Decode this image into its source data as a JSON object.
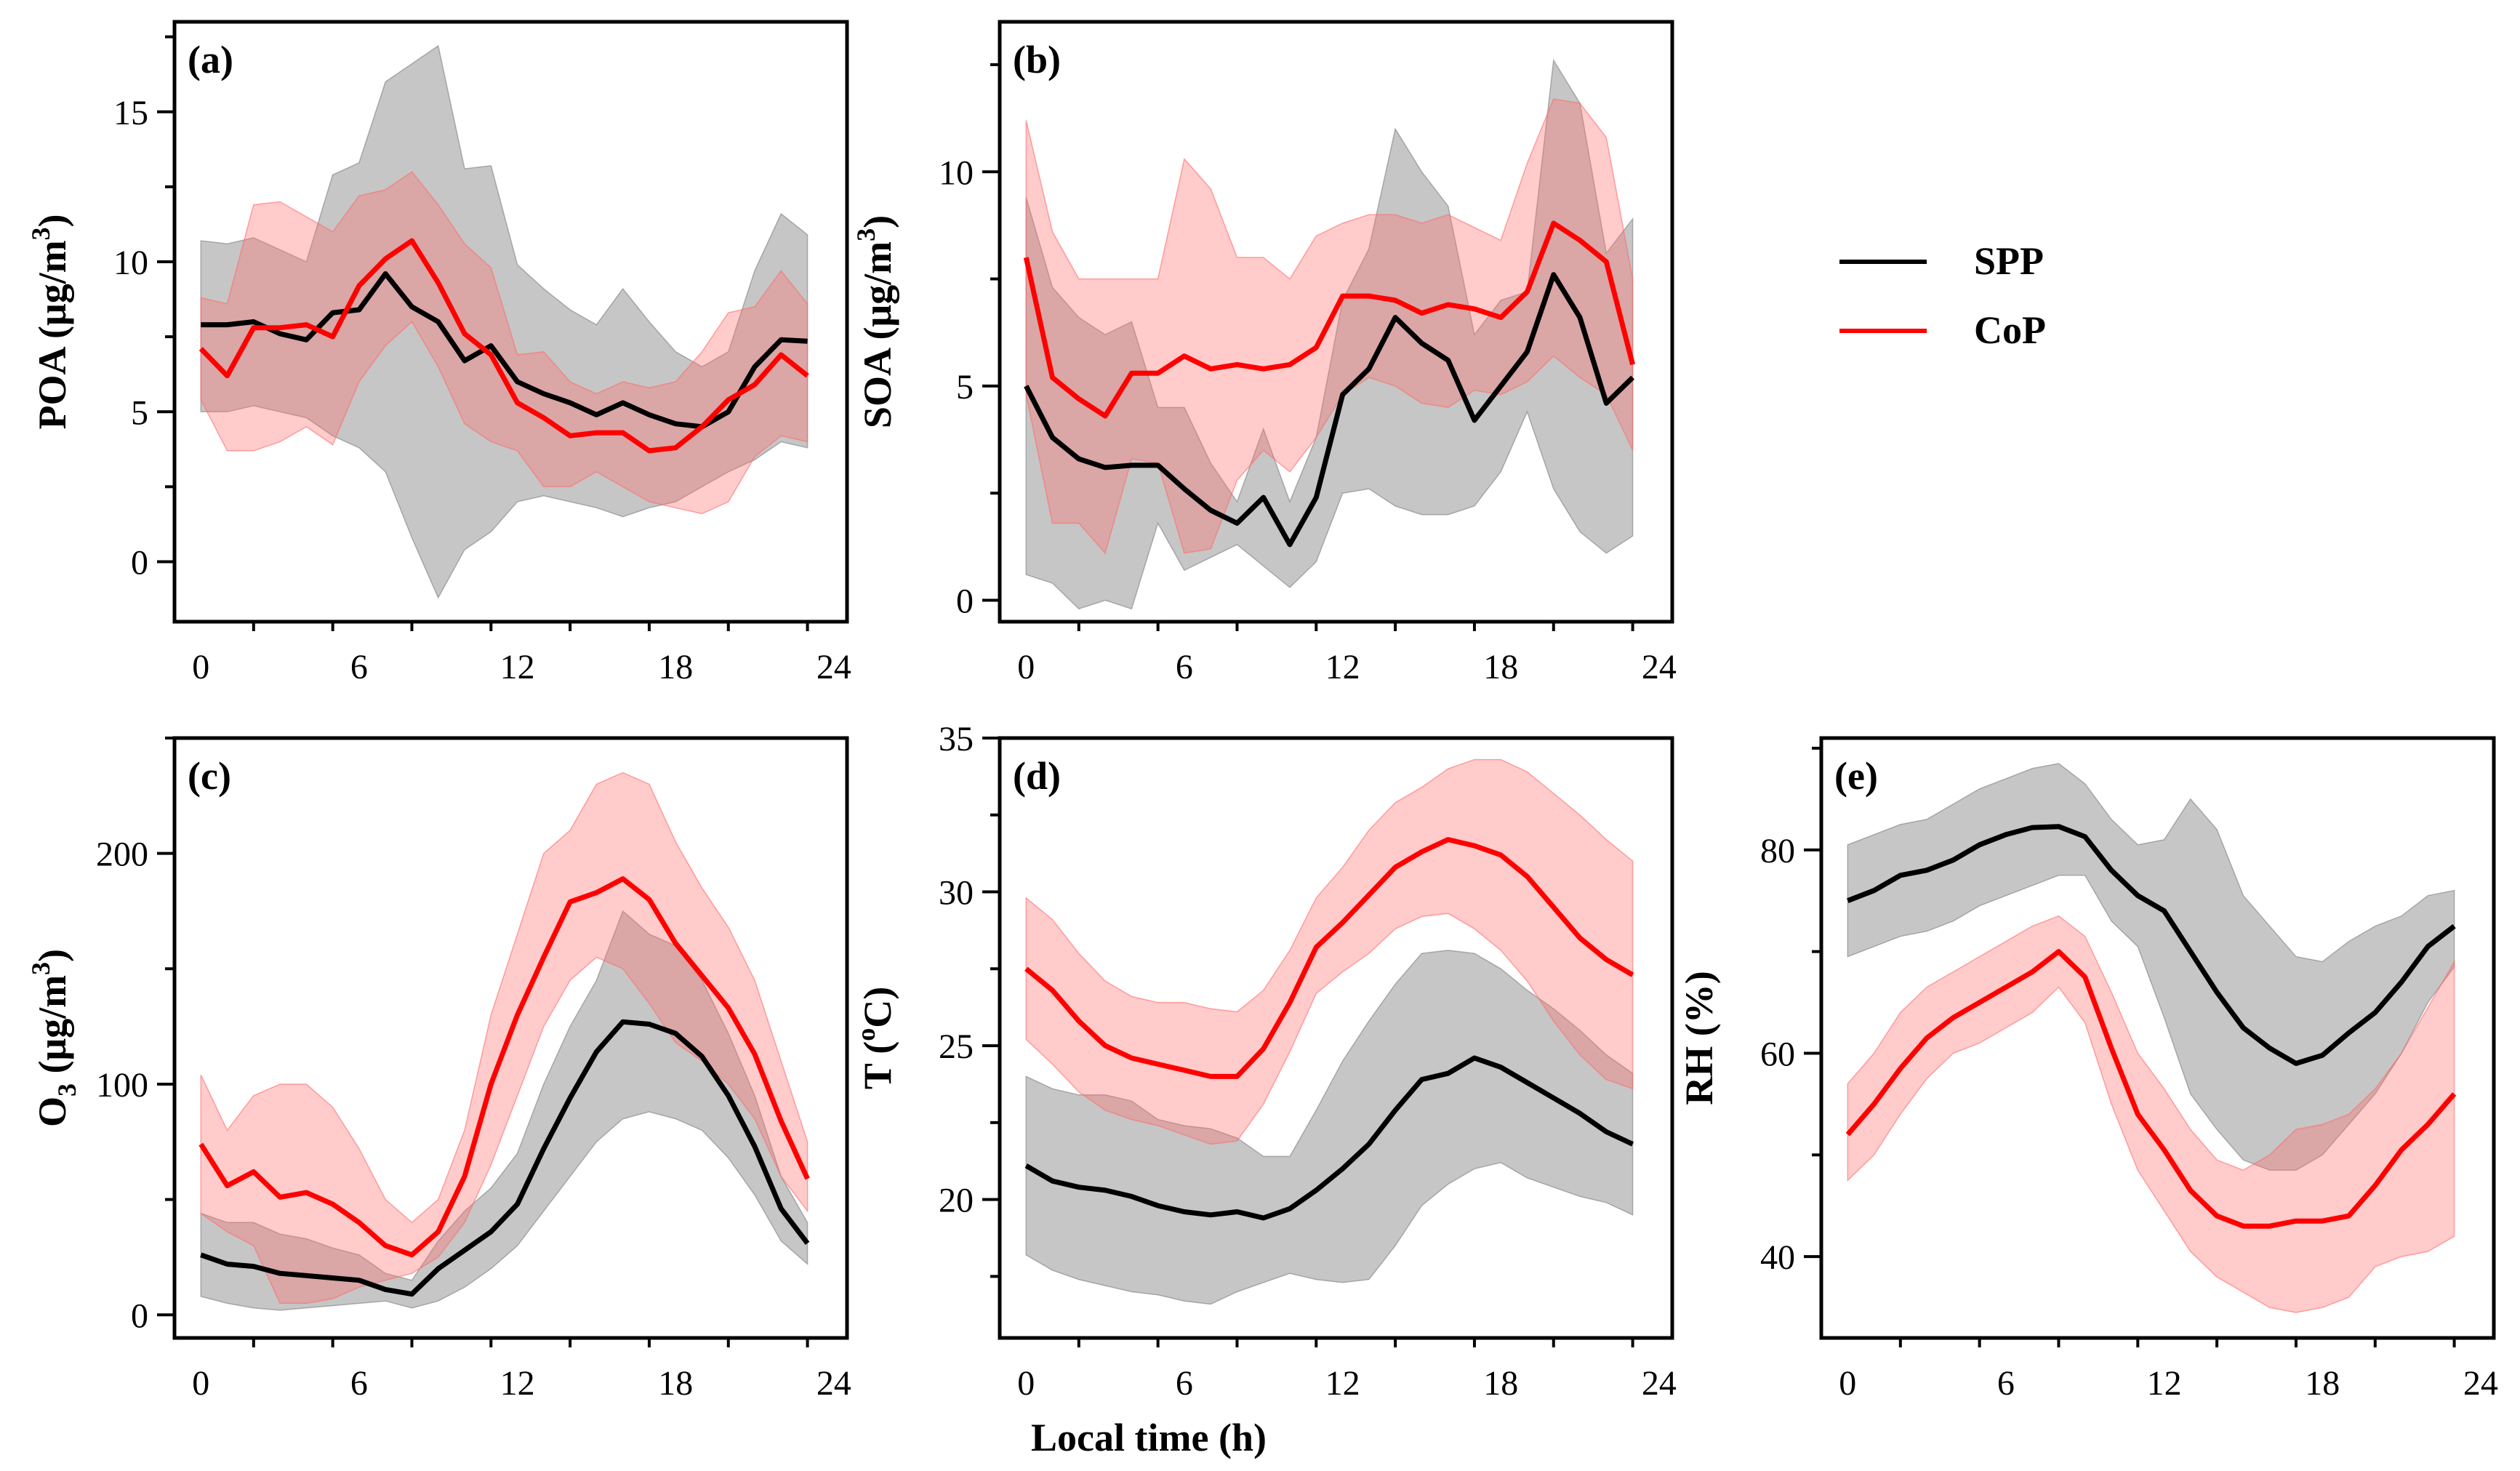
{
  "legend": {
    "entries": [
      {
        "name": "SPP",
        "color": "#000000"
      },
      {
        "name": "CoP",
        "color": "#ff0000"
      }
    ]
  },
  "xlabel": "Local time (h)",
  "colors": {
    "spp_line": "#000000",
    "spp_band": "#808080",
    "cop_line": "#ff0000",
    "cop_band": "#ff6b6b"
  },
  "chart_data": [
    {
      "type": "line",
      "panel": "(a)",
      "ylabel": "POA (μg/m3)",
      "ylabel_parts": [
        "POA (μg/m",
        "3",
        ")"
      ],
      "xlim": [
        -1,
        24.5
      ],
      "ylim": [
        -2,
        18
      ],
      "xticks": [
        0,
        6,
        12,
        18,
        24
      ],
      "yticks": [
        0,
        5,
        10,
        15
      ],
      "x": [
        0,
        1,
        2,
        3,
        4,
        5,
        6,
        7,
        8,
        9,
        10,
        11,
        12,
        13,
        14,
        15,
        16,
        17,
        18,
        19,
        20,
        21,
        22,
        23
      ],
      "series": [
        {
          "name": "SPP",
          "values": [
            7.9,
            7.9,
            8.0,
            7.6,
            7.4,
            8.3,
            8.4,
            9.6,
            8.5,
            8.0,
            6.7,
            7.2,
            6.0,
            5.6,
            5.3,
            4.9,
            5.3,
            4.9,
            4.6,
            4.5,
            5.0,
            6.5,
            7.4,
            7.35
          ],
          "lower": [
            5.0,
            5.0,
            5.2,
            5.0,
            4.8,
            4.2,
            3.8,
            3.0,
            0.8,
            -1.2,
            0.4,
            1.0,
            2.0,
            2.2,
            2.0,
            1.8,
            1.5,
            1.8,
            2.0,
            2.5,
            3.0,
            3.4,
            4.0,
            3.8
          ],
          "upper": [
            10.7,
            10.6,
            10.8,
            10.4,
            10.0,
            12.9,
            13.3,
            16.0,
            16.6,
            17.2,
            13.1,
            13.2,
            9.9,
            9.1,
            8.4,
            7.9,
            9.1,
            8.0,
            7.0,
            6.5,
            7.0,
            9.7,
            11.6,
            10.9
          ]
        },
        {
          "name": "CoP",
          "values": [
            7.1,
            6.2,
            7.8,
            7.8,
            7.9,
            7.5,
            9.2,
            10.1,
            10.7,
            9.3,
            7.6,
            6.9,
            5.3,
            4.8,
            4.2,
            4.3,
            4.3,
            3.7,
            3.8,
            4.5,
            5.4,
            5.9,
            6.9,
            6.2
          ],
          "lower": [
            5.4,
            3.7,
            3.7,
            4.0,
            4.5,
            3.9,
            6.0,
            7.2,
            8.0,
            6.5,
            4.6,
            4.0,
            3.7,
            2.5,
            2.5,
            3.0,
            2.5,
            2.0,
            1.8,
            1.6,
            2.0,
            3.5,
            4.2,
            4.0
          ],
          "upper": [
            8.8,
            8.6,
            11.9,
            12.0,
            11.5,
            11.0,
            12.2,
            12.4,
            13.0,
            11.9,
            10.6,
            9.8,
            6.9,
            7.0,
            6.0,
            5.6,
            6.0,
            5.8,
            6.0,
            7.0,
            8.3,
            8.5,
            9.7,
            8.6
          ]
        }
      ]
    },
    {
      "type": "line",
      "panel": "(b)",
      "ylabel": "SOA (μg/m3)",
      "ylabel_parts": [
        "SOA (μg/m",
        "3",
        ")"
      ],
      "xlim": [
        -1,
        24.5
      ],
      "ylim": [
        -0.5,
        13.5
      ],
      "xticks": [
        0,
        6,
        12,
        18,
        24
      ],
      "yticks": [
        0,
        5,
        10
      ],
      "x": [
        0,
        1,
        2,
        3,
        4,
        5,
        6,
        7,
        8,
        9,
        10,
        11,
        12,
        13,
        14,
        15,
        16,
        17,
        18,
        19,
        20,
        21,
        22,
        23
      ],
      "series": [
        {
          "name": "SPP",
          "values": [
            5.0,
            3.8,
            3.3,
            3.1,
            3.15,
            3.15,
            2.6,
            2.1,
            1.8,
            2.4,
            1.3,
            2.4,
            4.8,
            5.4,
            6.6,
            6.0,
            5.6,
            4.2,
            5.0,
            5.8,
            7.6,
            6.6,
            4.6,
            5.2
          ],
          "lower": [
            0.6,
            0.4,
            -0.2,
            0.0,
            -0.2,
            1.8,
            0.7,
            1.0,
            1.3,
            0.8,
            0.3,
            0.9,
            2.5,
            2.6,
            2.2,
            2.0,
            2.0,
            2.2,
            3.0,
            4.4,
            2.6,
            1.6,
            1.1,
            1.5
          ],
          "upper": [
            9.4,
            7.3,
            6.6,
            6.2,
            6.5,
            4.5,
            4.5,
            3.2,
            2.3,
            4.0,
            2.3,
            3.8,
            7.0,
            8.2,
            11.0,
            10.0,
            9.2,
            6.2,
            7.0,
            7.2,
            12.6,
            11.6,
            8.1,
            8.9
          ]
        },
        {
          "name": "CoP",
          "values": [
            8.0,
            5.2,
            4.7,
            4.3,
            5.3,
            5.3,
            5.7,
            5.4,
            5.5,
            5.4,
            5.5,
            5.9,
            7.1,
            7.1,
            7.0,
            6.7,
            6.9,
            6.8,
            6.6,
            7.2,
            8.8,
            8.4,
            7.9,
            5.5
          ],
          "lower": [
            4.8,
            1.8,
            1.8,
            1.1,
            3.3,
            3.2,
            1.1,
            1.2,
            2.8,
            3.5,
            3.0,
            3.8,
            4.8,
            5.2,
            5.0,
            4.6,
            4.5,
            4.9,
            4.8,
            5.1,
            5.7,
            5.2,
            4.8,
            3.5
          ],
          "upper": [
            11.2,
            8.6,
            7.5,
            7.5,
            7.5,
            7.5,
            10.3,
            9.6,
            8.0,
            8.0,
            7.5,
            8.5,
            8.8,
            9.0,
            9.0,
            8.8,
            9.0,
            8.7,
            8.4,
            10.2,
            11.7,
            11.6,
            10.8,
            7.5
          ]
        }
      ]
    },
    {
      "type": "line",
      "panel": "(c)",
      "ylabel": "O3 (μg/m3)",
      "ylabel_parts": [
        "O",
        "3",
        " (μg/m",
        "3",
        ")"
      ],
      "xlim": [
        -1,
        24.5
      ],
      "ylim": [
        -10,
        250
      ],
      "xticks": [
        0,
        6,
        12,
        18,
        24
      ],
      "yticks": [
        0,
        100,
        200
      ],
      "x": [
        0,
        1,
        2,
        3,
        4,
        5,
        6,
        7,
        8,
        9,
        10,
        11,
        12,
        13,
        14,
        15,
        16,
        17,
        18,
        19,
        20,
        21,
        22,
        23
      ],
      "series": [
        {
          "name": "SPP",
          "values": [
            26,
            22,
            21,
            18,
            17,
            16,
            15,
            11,
            9,
            20,
            28,
            36,
            48,
            72,
            94,
            114,
            127,
            126,
            122,
            112,
            95,
            73,
            46,
            31
          ],
          "lower": [
            8,
            5,
            3,
            2,
            3,
            4,
            5,
            6,
            3,
            6,
            12,
            20,
            30,
            45,
            60,
            75,
            85,
            88,
            85,
            80,
            68,
            52,
            32,
            22
          ],
          "upper": [
            44,
            40,
            40,
            35,
            33,
            29,
            26,
            18,
            15,
            32,
            45,
            55,
            70,
            100,
            125,
            145,
            175,
            165,
            160,
            145,
            122,
            95,
            60,
            40
          ]
        },
        {
          "name": "CoP",
          "values": [
            74,
            56,
            62,
            51,
            53,
            48,
            40,
            30,
            26,
            36,
            60,
            100,
            130,
            155,
            179,
            183,
            189,
            180,
            161,
            147,
            133,
            113,
            84,
            59
          ],
          "lower": [
            44,
            36,
            30,
            5,
            5,
            7,
            12,
            15,
            18,
            25,
            40,
            65,
            95,
            125,
            145,
            155,
            150,
            135,
            118,
            110,
            100,
            85,
            60,
            45
          ],
          "upper": [
            104,
            80,
            95,
            100,
            100,
            90,
            72,
            50,
            40,
            50,
            80,
            130,
            165,
            200,
            210,
            230,
            235,
            230,
            205,
            185,
            168,
            145,
            110,
            75
          ]
        }
      ]
    },
    {
      "type": "line",
      "panel": "(d)",
      "ylabel": "T (°C)",
      "ylabel_parts": [
        "T (",
        "o",
        "C)"
      ],
      "xlim": [
        -1,
        24.5
      ],
      "ylim": [
        15.5,
        35
      ],
      "xticks": [
        0,
        6,
        12,
        18,
        24
      ],
      "yticks": [
        20,
        25,
        30,
        35
      ],
      "x": [
        0,
        1,
        2,
        3,
        4,
        5,
        6,
        7,
        8,
        9,
        10,
        11,
        12,
        13,
        14,
        15,
        16,
        17,
        18,
        19,
        20,
        21,
        22,
        23
      ],
      "series": [
        {
          "name": "SPP",
          "values": [
            21.1,
            20.6,
            20.4,
            20.3,
            20.1,
            19.8,
            19.6,
            19.5,
            19.6,
            19.4,
            19.7,
            20.3,
            21.0,
            21.8,
            22.9,
            23.9,
            24.1,
            24.6,
            24.3,
            23.8,
            23.3,
            22.8,
            22.2,
            21.8
          ],
          "lower": [
            18.2,
            17.7,
            17.4,
            17.2,
            17.0,
            16.9,
            16.7,
            16.6,
            17.0,
            17.3,
            17.6,
            17.4,
            17.3,
            17.4,
            18.5,
            19.8,
            20.5,
            21.0,
            21.2,
            20.7,
            20.4,
            20.1,
            19.9,
            19.5
          ],
          "upper": [
            24.0,
            23.6,
            23.4,
            23.4,
            23.2,
            22.6,
            22.4,
            22.3,
            22.0,
            21.4,
            21.4,
            22.9,
            24.5,
            25.8,
            27.0,
            28.0,
            28.1,
            28.0,
            27.5,
            26.8,
            26.2,
            25.5,
            24.7,
            24.1
          ]
        },
        {
          "name": "CoP",
          "values": [
            27.5,
            26.8,
            25.8,
            25.0,
            24.6,
            24.4,
            24.2,
            24.0,
            24.0,
            24.9,
            26.4,
            28.2,
            29.0,
            29.9,
            30.8,
            31.3,
            31.7,
            31.5,
            31.2,
            30.5,
            29.5,
            28.5,
            27.8,
            27.3
          ],
          "lower": [
            25.2,
            24.4,
            23.5,
            22.9,
            22.6,
            22.4,
            22.1,
            21.8,
            21.9,
            23.1,
            24.8,
            26.7,
            27.4,
            28.0,
            28.8,
            29.2,
            29.3,
            28.8,
            28.1,
            27.1,
            25.8,
            24.7,
            23.9,
            23.6
          ],
          "upper": [
            29.8,
            29.1,
            28.0,
            27.1,
            26.6,
            26.4,
            26.4,
            26.2,
            26.1,
            26.8,
            28.1,
            29.8,
            30.8,
            32.0,
            32.9,
            33.4,
            34.0,
            34.3,
            34.3,
            33.9,
            33.2,
            32.5,
            31.7,
            31.0
          ]
        }
      ]
    },
    {
      "type": "line",
      "panel": "(e)",
      "ylabel": "RH (%)",
      "ylabel_parts": [
        "RH (%)"
      ],
      "xlim": [
        -1,
        24.5
      ],
      "ylim": [
        32,
        91
      ],
      "xticks": [
        0,
        6,
        12,
        18,
        24
      ],
      "yticks": [
        40,
        60,
        80
      ],
      "x": [
        0,
        1,
        2,
        3,
        4,
        5,
        6,
        7,
        8,
        9,
        10,
        11,
        12,
        13,
        14,
        15,
        16,
        17,
        18,
        19,
        20,
        21,
        22,
        23
      ],
      "series": [
        {
          "name": "SPP",
          "values": [
            75,
            76,
            77.5,
            78,
            79,
            80.5,
            81.5,
            82.2,
            82.3,
            81.3,
            78,
            75.5,
            74,
            70,
            66,
            62.5,
            60.5,
            59,
            59.8,
            62,
            64,
            67,
            70.5,
            72.5
          ],
          "lower": [
            69.5,
            70.5,
            71.5,
            72,
            73,
            74.5,
            75.5,
            76.5,
            77.5,
            77.5,
            73,
            70.5,
            63.5,
            56,
            52.5,
            49.5,
            48.5,
            48.5,
            50,
            53,
            56,
            60,
            65,
            68.5
          ],
          "upper": [
            80.5,
            81.5,
            82.5,
            83,
            84.5,
            86,
            87,
            88,
            88.5,
            86.5,
            83,
            80.5,
            81,
            85,
            82,
            75.5,
            72.5,
            69.5,
            69,
            71,
            72.5,
            73.5,
            75.5,
            76
          ]
        },
        {
          "name": "CoP",
          "values": [
            52,
            55,
            58.5,
            61.5,
            63.5,
            65,
            66.5,
            68,
            70,
            67.5,
            60.5,
            54,
            50.5,
            46.5,
            44,
            43,
            43,
            43.5,
            43.5,
            44,
            47,
            50.5,
            53,
            56
          ],
          "lower": [
            47.5,
            50,
            54,
            57.5,
            60,
            61,
            62.5,
            64,
            66.5,
            63,
            55,
            48.5,
            44.5,
            40.5,
            38,
            36.5,
            35,
            34.5,
            35,
            36,
            39,
            40,
            40.5,
            42
          ],
          "upper": [
            57,
            60,
            64,
            66.5,
            68,
            69.5,
            71,
            72.5,
            73.5,
            71.5,
            66,
            60,
            56.5,
            52.5,
            49.5,
            48.5,
            50,
            52.5,
            53,
            54,
            56.5,
            60,
            64.5,
            69
          ]
        }
      ]
    }
  ]
}
